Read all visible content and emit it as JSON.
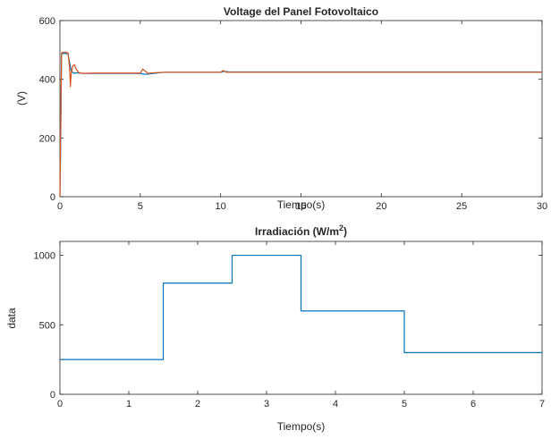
{
  "chart_data": [
    {
      "type": "line",
      "title": "Voltage del Panel Fotovoltaico",
      "xlabel": "Tiempo(s)",
      "ylabel": "(V)",
      "xlim": [
        0,
        30
      ],
      "ylim": [
        0,
        600
      ],
      "xticks": [
        0,
        5,
        10,
        15,
        20,
        25,
        30
      ],
      "yticks": [
        0,
        200,
        400,
        600
      ],
      "xtick_labels": [
        "0",
        "5",
        "10",
        "15",
        "20",
        "25",
        "30"
      ],
      "ytick_labels": [
        "0",
        "200",
        "400",
        "600"
      ],
      "grid": false,
      "series": [
        {
          "color": "#0072BD",
          "x": [
            0,
            0.05,
            0.1,
            0.2,
            0.35,
            0.5,
            0.7,
            0.85,
            1.0,
            1.5,
            3,
            5.0,
            5.2,
            5.4,
            5.8,
            6.5,
            8,
            10.0,
            10.2,
            10.5,
            12,
            15,
            20,
            25,
            30
          ],
          "y": [
            0,
            200,
            485,
            488,
            488,
            486,
            430,
            420,
            422,
            420,
            420,
            420,
            418,
            417,
            420,
            424,
            424,
            424,
            427,
            425,
            425,
            425,
            425,
            425,
            425
          ]
        },
        {
          "color": "#D95319",
          "x": [
            0,
            0.05,
            0.1,
            0.2,
            0.35,
            0.5,
            0.6,
            0.65,
            0.7,
            0.8,
            0.9,
            1.0,
            1.2,
            1.5,
            2,
            3,
            5.0,
            5.15,
            5.3,
            5.5,
            5.8,
            6.5,
            8,
            10.0,
            10.15,
            10.35,
            10.6,
            12,
            15,
            20,
            25,
            30
          ],
          "y": [
            0,
            250,
            490,
            492,
            492,
            490,
            440,
            375,
            420,
            445,
            450,
            435,
            422,
            420,
            421,
            421,
            421,
            435,
            428,
            420,
            422,
            424,
            424,
            424,
            430,
            424,
            424,
            424,
            424,
            424,
            424,
            424
          ]
        }
      ]
    },
    {
      "type": "line",
      "title": "Irradiación (W/m",
      "title_sup": "2",
      "title_end": ")",
      "xlabel": "Tiempo(s)",
      "ylabel": "data",
      "xlim": [
        0,
        7
      ],
      "ylim": [
        0,
        1100
      ],
      "xticks": [
        0,
        1,
        2,
        3,
        4,
        5,
        6,
        7
      ],
      "yticks": [
        0,
        500,
        1000
      ],
      "xtick_labels": [
        "0",
        "1",
        "2",
        "3",
        "4",
        "5",
        "6",
        "7"
      ],
      "ytick_labels": [
        "0",
        "500",
        "1000"
      ],
      "grid": false,
      "series": [
        {
          "color": "#0072BD",
          "step": true,
          "x": [
            0,
            1.5,
            1.5,
            2.5,
            2.5,
            3.5,
            3.5,
            5,
            5,
            7
          ],
          "y": [
            250,
            250,
            800,
            800,
            1000,
            1000,
            600,
            600,
            300,
            300
          ]
        }
      ]
    }
  ]
}
